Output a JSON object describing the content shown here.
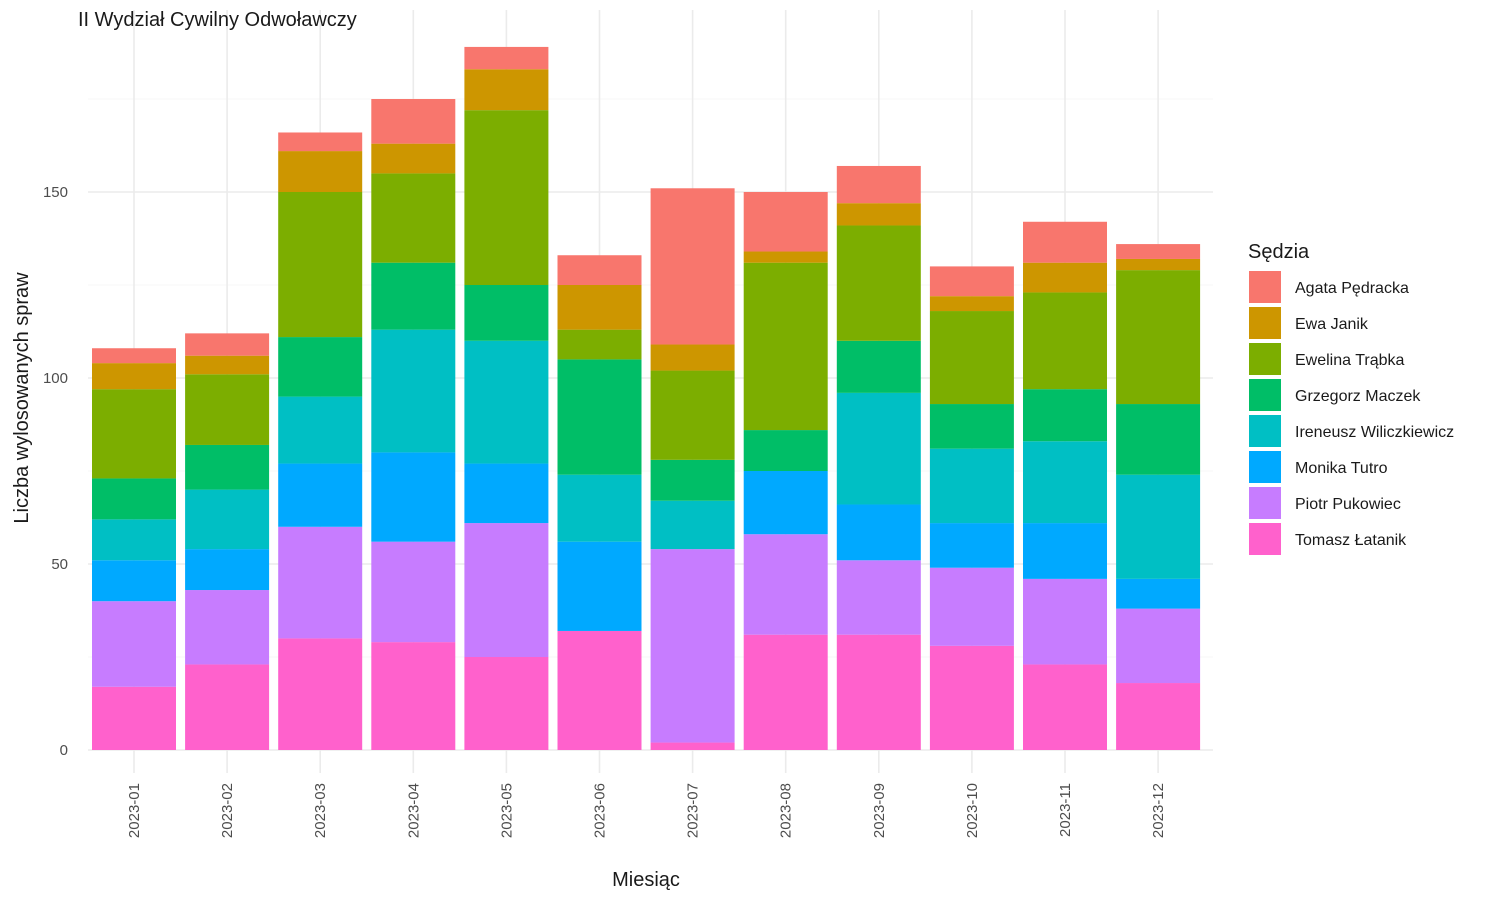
{
  "chart_data": {
    "type": "bar",
    "stacked": true,
    "title": "II Wydział Cywilny Odwoławczy",
    "xlabel": "Miesiąc",
    "ylabel": "Liczba wylosowanych spraw",
    "ylim": [
      0,
      200
    ],
    "yticks": [
      0,
      50,
      100,
      150
    ],
    "grid": true,
    "legend_title": "Sędzia",
    "legend_position": "right",
    "categories": [
      "2023-01",
      "2023-02",
      "2023-03",
      "2023-04",
      "2023-05",
      "2023-06",
      "2023-07",
      "2023-08",
      "2023-09",
      "2023-10",
      "2023-11",
      "2023-12"
    ],
    "series": [
      {
        "name": "Tomasz Łatanik",
        "color": "#FF61CC",
        "values": [
          17,
          23,
          30,
          29,
          25,
          32,
          2,
          31,
          31,
          28,
          23,
          18
        ]
      },
      {
        "name": "Piotr Pukowiec",
        "color": "#C77CFF",
        "values": [
          23,
          20,
          30,
          27,
          36,
          0,
          52,
          27,
          20,
          21,
          23,
          20
        ]
      },
      {
        "name": "Monika Tutro",
        "color": "#00A9FF",
        "values": [
          11,
          11,
          17,
          24,
          16,
          24,
          0,
          17,
          15,
          12,
          15,
          8
        ]
      },
      {
        "name": "Ireneusz Wiliczkiewicz",
        "color": "#00BFC4",
        "values": [
          11,
          16,
          18,
          33,
          33,
          18,
          13,
          0,
          30,
          20,
          22,
          28
        ]
      },
      {
        "name": "Grzegorz Maczek",
        "color": "#00BE67",
        "values": [
          11,
          12,
          16,
          18,
          15,
          31,
          11,
          11,
          14,
          12,
          14,
          19
        ]
      },
      {
        "name": "Ewelina Trąbka",
        "color": "#7CAE00",
        "values": [
          24,
          19,
          39,
          24,
          47,
          8,
          24,
          45,
          31,
          25,
          26,
          36
        ]
      },
      {
        "name": "Ewa Janik",
        "color": "#CD9600",
        "values": [
          7,
          5,
          11,
          8,
          11,
          12,
          7,
          3,
          6,
          4,
          8,
          3
        ]
      },
      {
        "name": "Agata Pędracka",
        "color": "#F8766D",
        "values": [
          4,
          6,
          5,
          12,
          6,
          8,
          42,
          16,
          10,
          8,
          11,
          4
        ]
      }
    ],
    "legend_order": [
      "Agata Pędracka",
      "Ewa Janik",
      "Ewelina Trąbka",
      "Grzegorz Maczek",
      "Ireneusz Wiliczkiewicz",
      "Monika Tutro",
      "Piotr Pukowiec",
      "Tomasz Łatanik"
    ]
  }
}
